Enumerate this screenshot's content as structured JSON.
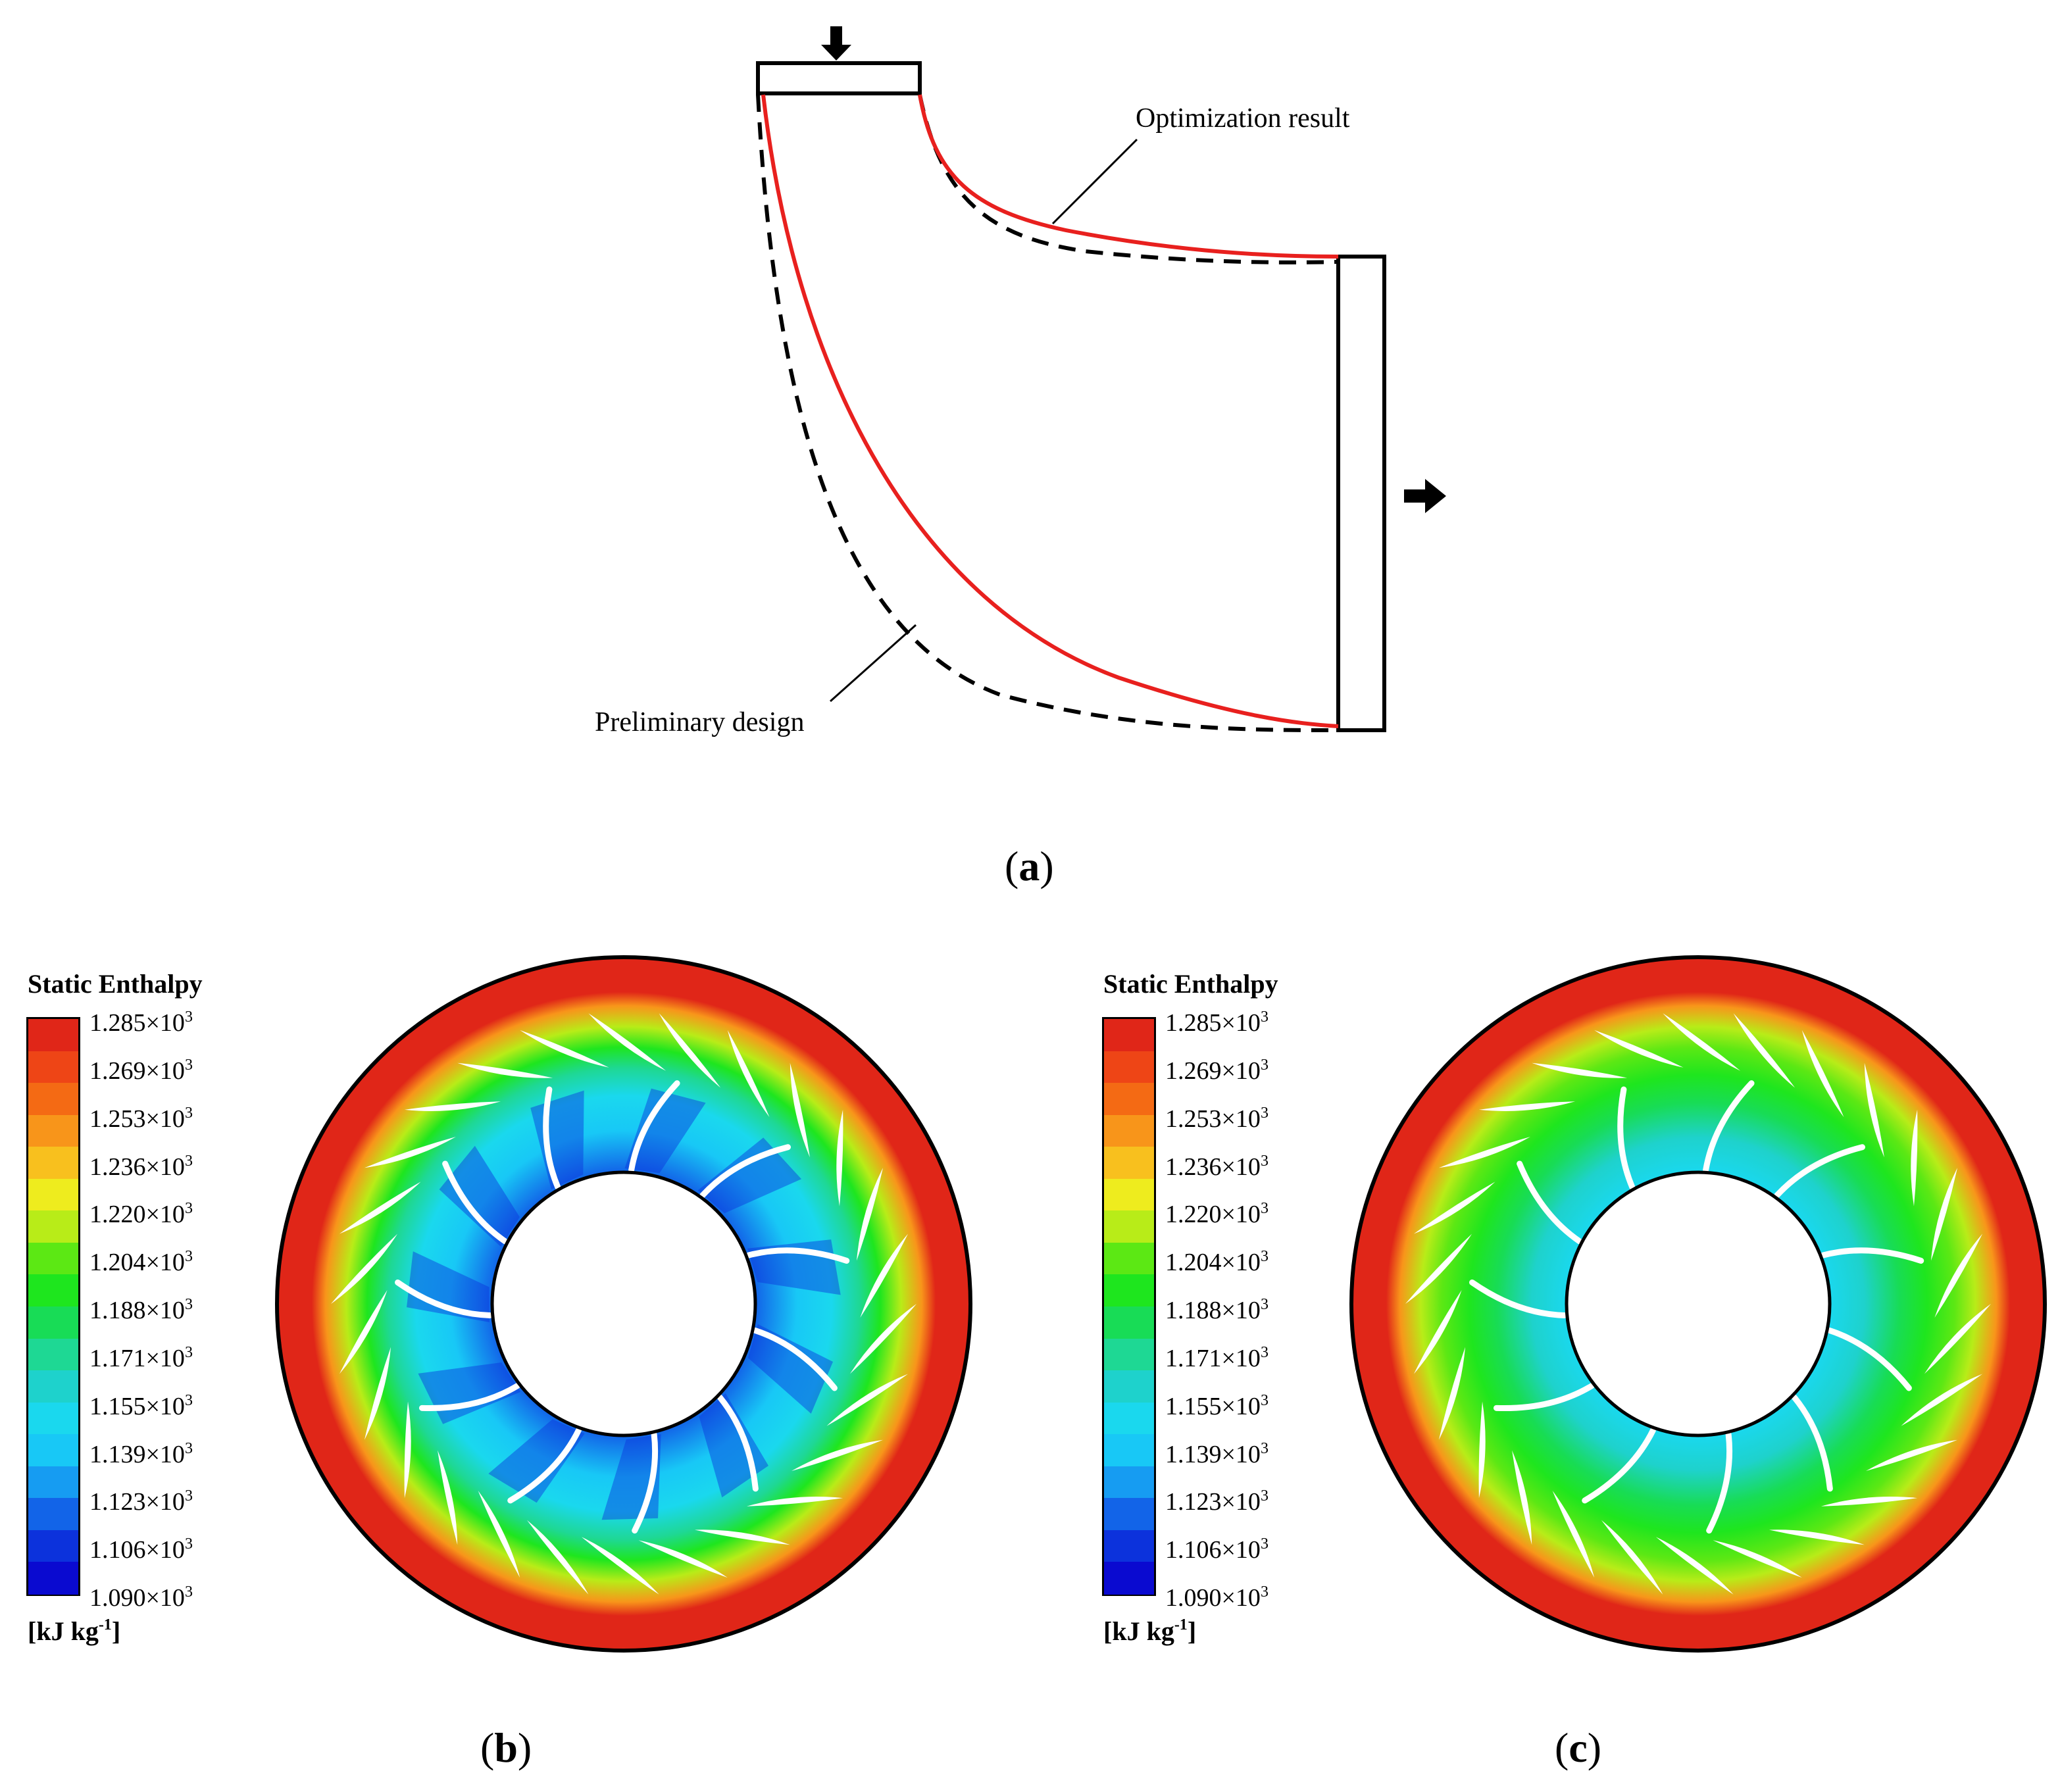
{
  "panel_a": {
    "label_open": "(",
    "label_letter": "a",
    "label_close": ")",
    "annotation_optimization": "Optimization result",
    "annotation_preliminary": "Preliminary design",
    "colors": {
      "optimization": "#e8201e",
      "preliminary": "#000000"
    }
  },
  "colorbar": {
    "title": "Static Enthalpy",
    "unit_prefix": "[kJ kg",
    "unit_exp": "-1",
    "unit_suffix": "]",
    "exp": "3",
    "ticks": [
      "1.285×10",
      "1.269×10",
      "1.253×10",
      "1.236×10",
      "1.220×10",
      "1.204×10",
      "1.188×10",
      "1.171×10",
      "1.155×10",
      "1.139×10",
      "1.123×10",
      "1.106×10",
      "1.090×10"
    ],
    "colors": [
      "#e02618",
      "#ee4516",
      "#f46a14",
      "#f8951a",
      "#f8c01e",
      "#eeec1e",
      "#b8ec18",
      "#5ce814",
      "#1ee61e",
      "#18dc56",
      "#1ed894",
      "#1ed2cc",
      "#1ad8ee",
      "#18c8f6",
      "#169cf2",
      "#1264e8",
      "#0c32dc",
      "#0a0ad0"
    ]
  },
  "panel_b": {
    "label_open": "(",
    "label_letter": "b",
    "label_close": ")"
  },
  "panel_c": {
    "label_open": "(",
    "label_letter": "c",
    "label_close": ")"
  }
}
